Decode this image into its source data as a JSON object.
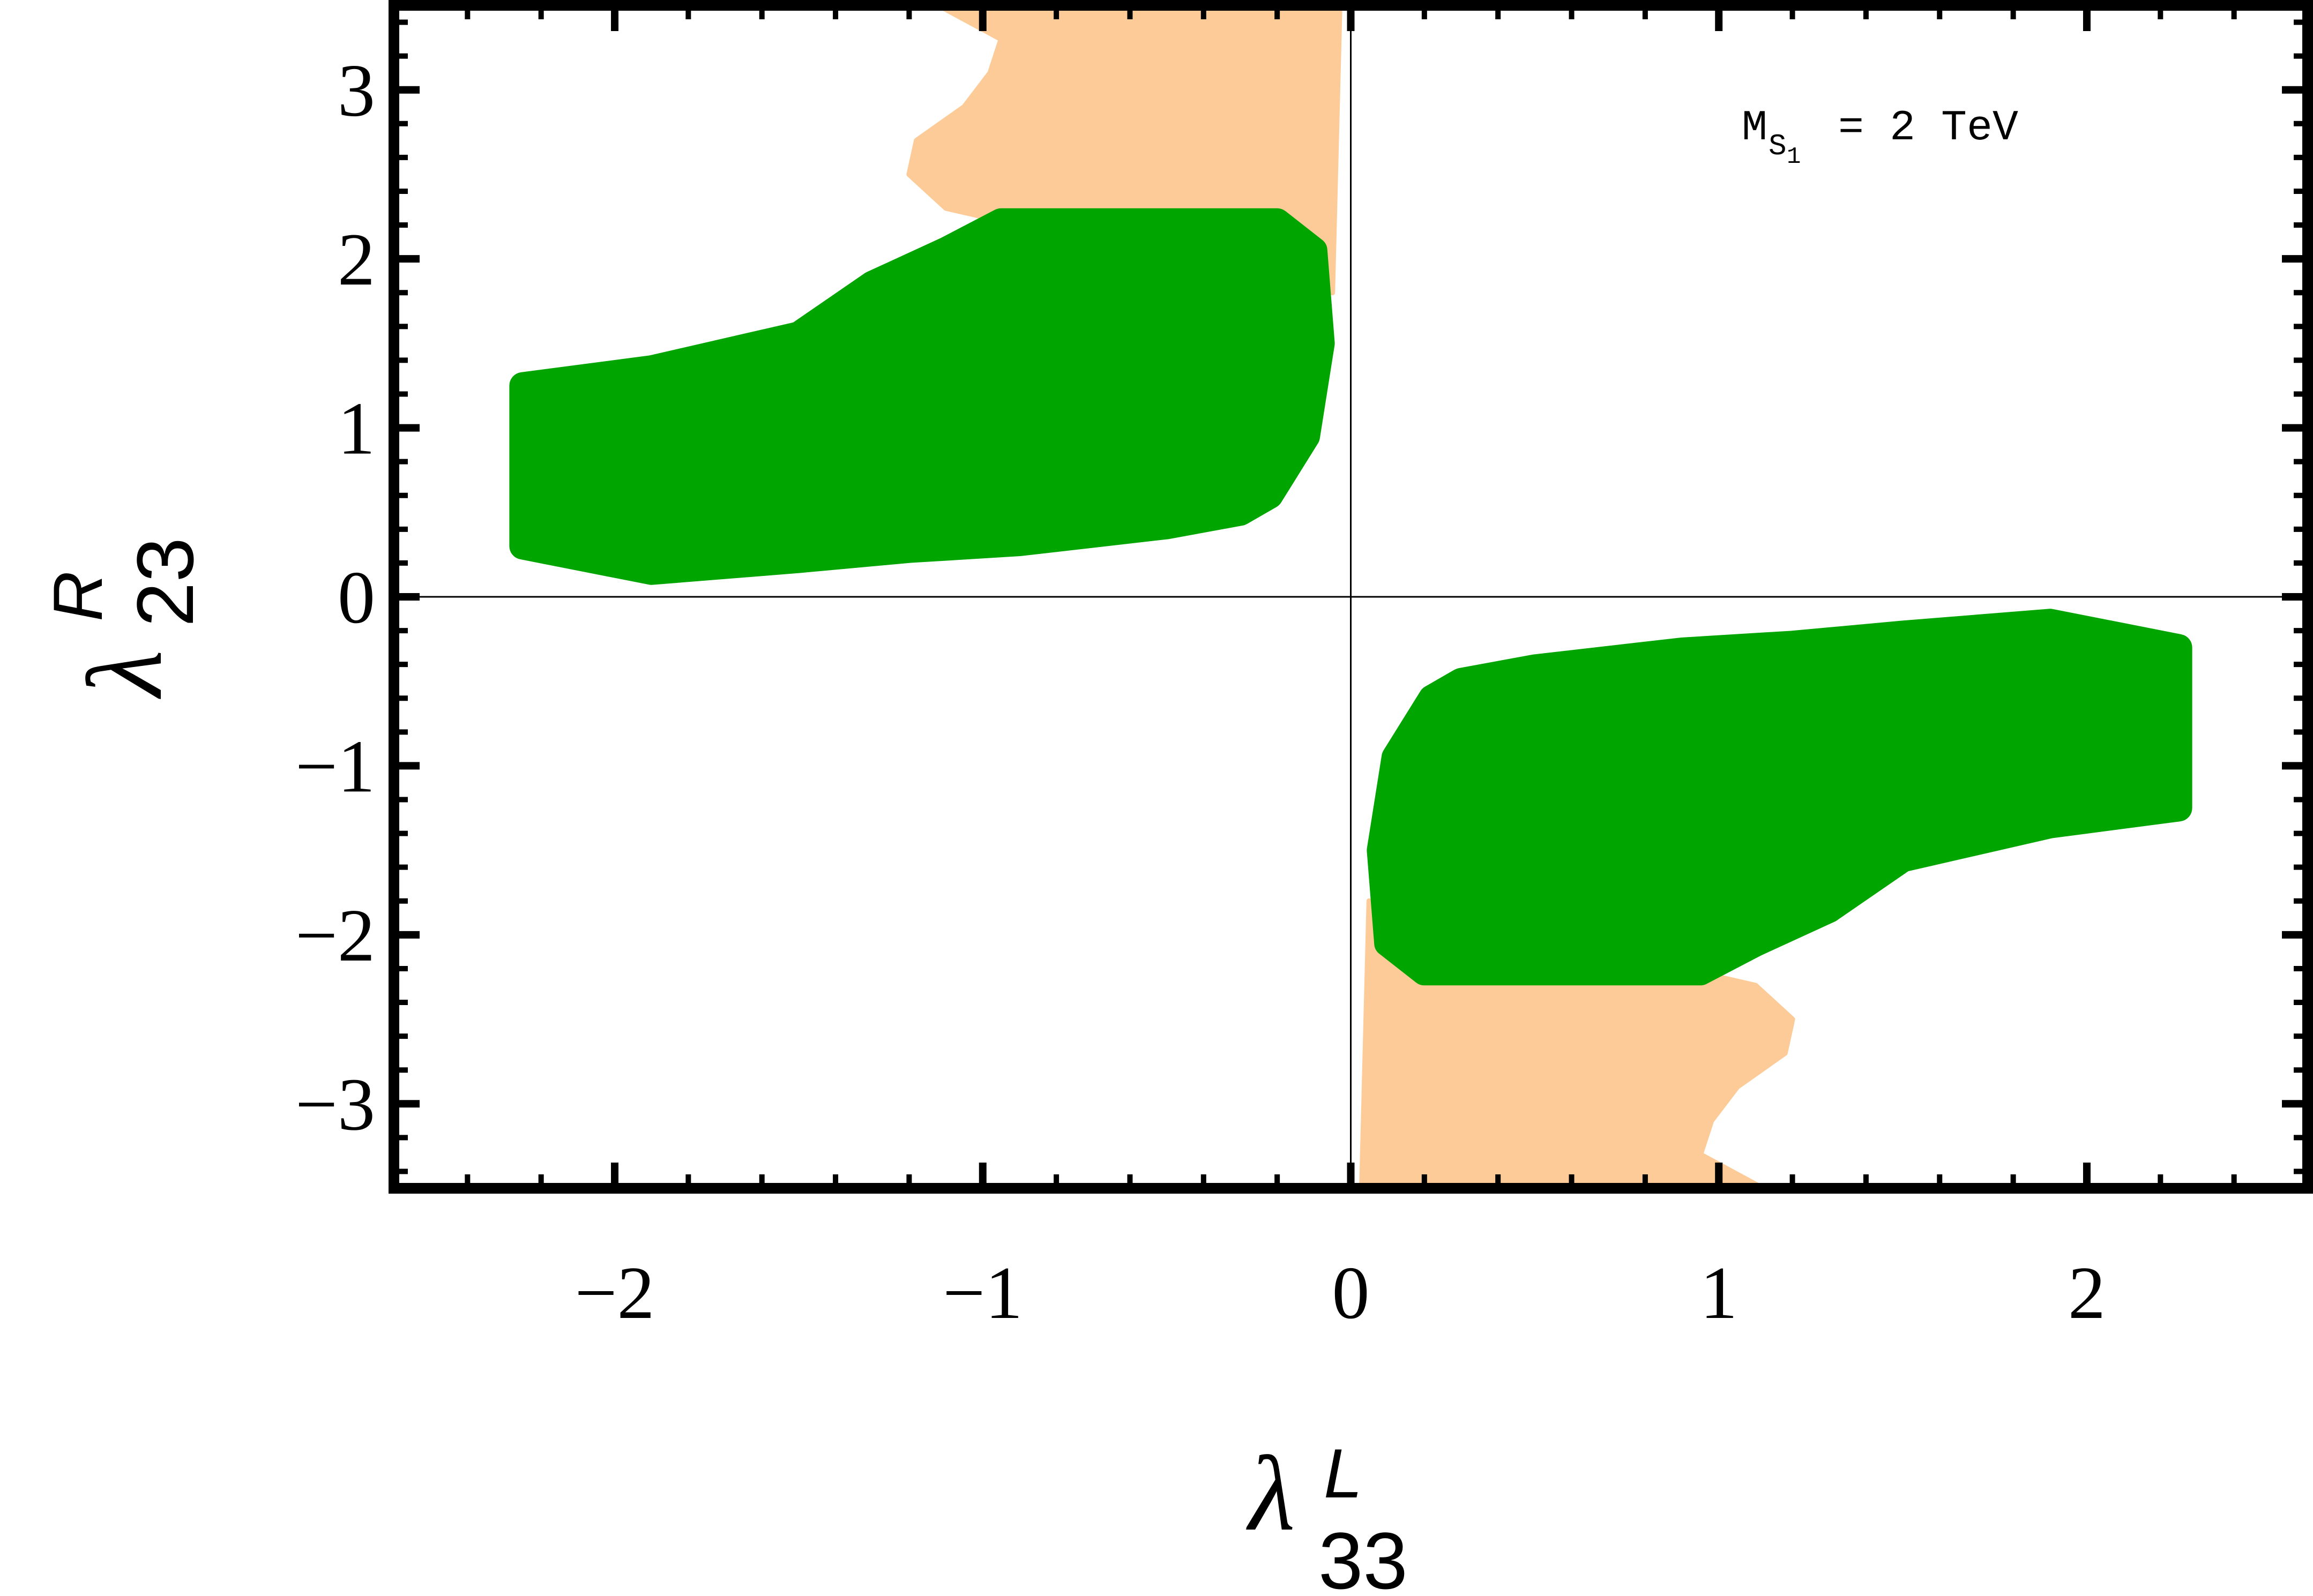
{
  "chart_data": {
    "type": "scatter",
    "xlim": [
      -2.6,
      2.6
    ],
    "ylim": [
      -3.5,
      3.5
    ],
    "x_ticks": [
      -2,
      -1,
      0,
      1,
      2
    ],
    "x_tick_labels": [
      "−2",
      "−1",
      "0",
      "1",
      "2"
    ],
    "y_ticks": [
      -3,
      -2,
      -1,
      0,
      1,
      2,
      3
    ],
    "y_tick_labels": [
      "−3",
      "−2",
      "−1",
      "0",
      "1",
      "2",
      "3"
    ],
    "xlabel": {
      "symbol": "λ",
      "sub": "33",
      "sup": "L"
    },
    "ylabel": {
      "symbol": "λ",
      "sub": "23",
      "sup": "R"
    },
    "annotation": {
      "main": "M",
      "sub": "S",
      "subsub": "1",
      "rest": "= 2 TeV"
    },
    "grid": false,
    "zero_lines": true,
    "colors": {
      "green": "#00a500",
      "peach": "#fdcb97",
      "frame": "#000000",
      "zero_line": "#000000"
    },
    "regions": [
      {
        "name": "peach",
        "color": "#fdcb97",
        "polygons": [
          [
            [
              -1.12,
              3.5
            ],
            [
              -0.03,
              3.5
            ],
            [
              -0.05,
              1.8
            ],
            [
              -0.3,
              2.15
            ],
            [
              -1.0,
              2.25
            ],
            [
              -1.1,
              2.3
            ],
            [
              -1.2,
              2.5
            ],
            [
              -1.18,
              2.7
            ],
            [
              -1.05,
              2.9
            ],
            [
              -0.98,
              3.1
            ],
            [
              -0.95,
              3.3
            ]
          ],
          [
            [
              1.12,
              -3.5
            ],
            [
              0.03,
              -3.5
            ],
            [
              0.05,
              -1.8
            ],
            [
              0.3,
              -2.15
            ],
            [
              1.0,
              -2.25
            ],
            [
              1.1,
              -2.3
            ],
            [
              1.2,
              -2.5
            ],
            [
              1.18,
              -2.7
            ],
            [
              1.05,
              -2.9
            ],
            [
              0.98,
              -3.1
            ],
            [
              0.95,
              -3.3
            ]
          ]
        ]
      },
      {
        "name": "green",
        "color": "#00a500",
        "polygons": [
          [
            [
              -2.25,
              1.25
            ],
            [
              -1.9,
              1.35
            ],
            [
              -1.5,
              1.55
            ],
            [
              -1.3,
              1.85
            ],
            [
              -1.1,
              2.05
            ],
            [
              -0.95,
              2.22
            ],
            [
              -0.2,
              2.22
            ],
            [
              -0.1,
              2.05
            ],
            [
              -0.08,
              1.5
            ],
            [
              -0.12,
              0.95
            ],
            [
              -0.22,
              0.6
            ],
            [
              -0.3,
              0.5
            ],
            [
              -0.5,
              0.42
            ],
            [
              -0.9,
              0.32
            ],
            [
              -1.2,
              0.28
            ],
            [
              -1.5,
              0.22
            ],
            [
              -1.9,
              0.15
            ],
            [
              -2.25,
              0.3
            ]
          ],
          [
            [
              2.25,
              -1.25
            ],
            [
              1.9,
              -1.35
            ],
            [
              1.5,
              -1.55
            ],
            [
              1.3,
              -1.85
            ],
            [
              1.1,
              -2.05
            ],
            [
              0.95,
              -2.22
            ],
            [
              0.2,
              -2.22
            ],
            [
              0.1,
              -2.05
            ],
            [
              0.08,
              -1.5
            ],
            [
              0.12,
              -0.95
            ],
            [
              0.22,
              -0.6
            ],
            [
              0.3,
              -0.5
            ],
            [
              0.5,
              -0.42
            ],
            [
              0.9,
              -0.32
            ],
            [
              1.2,
              -0.28
            ],
            [
              1.5,
              -0.22
            ],
            [
              1.9,
              -0.15
            ],
            [
              2.25,
              -0.3
            ]
          ]
        ]
      }
    ]
  }
}
